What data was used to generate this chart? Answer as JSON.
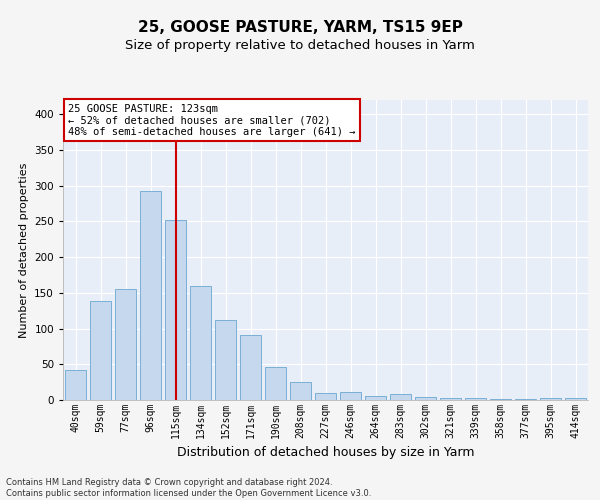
{
  "title1": "25, GOOSE PASTURE, YARM, TS15 9EP",
  "title2": "Size of property relative to detached houses in Yarm",
  "xlabel": "Distribution of detached houses by size in Yarm",
  "ylabel": "Number of detached properties",
  "categories": [
    "40sqm",
    "59sqm",
    "77sqm",
    "96sqm",
    "115sqm",
    "134sqm",
    "152sqm",
    "171sqm",
    "190sqm",
    "208sqm",
    "227sqm",
    "246sqm",
    "264sqm",
    "283sqm",
    "302sqm",
    "321sqm",
    "339sqm",
    "358sqm",
    "377sqm",
    "395sqm",
    "414sqm"
  ],
  "values": [
    42,
    138,
    155,
    293,
    252,
    160,
    112,
    91,
    46,
    25,
    10,
    11,
    6,
    9,
    4,
    3,
    3,
    2,
    2,
    3,
    3
  ],
  "highlight_index": 4,
  "bar_color": "#c5d8ed",
  "bar_edge_color": "#7aafd4",
  "vline_color": "#cc0000",
  "vline_x": 4,
  "annotation_text": "25 GOOSE PASTURE: 123sqm\n← 52% of detached houses are smaller (702)\n48% of semi-detached houses are larger (641) →",
  "annotation_box_facecolor": "#ffffff",
  "annotation_box_edgecolor": "#cc0000",
  "footer_text": "Contains HM Land Registry data © Crown copyright and database right 2024.\nContains public sector information licensed under the Open Government Licence v3.0.",
  "ylim": [
    0,
    420
  ],
  "yticks": [
    0,
    50,
    100,
    150,
    200,
    250,
    300,
    350,
    400
  ],
  "fig_facecolor": "#f5f5f5",
  "ax_facecolor": "#e8eef8",
  "grid_color": "#ffffff",
  "title1_fontsize": 11,
  "title2_fontsize": 9.5,
  "xlabel_fontsize": 9,
  "ylabel_fontsize": 8,
  "tick_fontsize": 7,
  "ann_fontsize": 7.5,
  "footer_fontsize": 6
}
